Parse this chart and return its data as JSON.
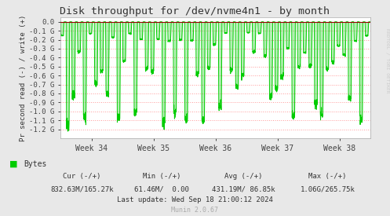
{
  "title": "Disk throughput for /dev/nvme4n1 - by month",
  "ylabel": "Pr second read (-) / write (+)",
  "background_color": "#e8e8e8",
  "plot_bg_color": "#ffffff",
  "grid_color": "#ff9999",
  "line_color": "#00cc00",
  "ylim_min": -1300000000.0,
  "ylim_max": 50000000.0,
  "yticks": [
    0.0,
    -100000000.0,
    -200000000.0,
    -300000000.0,
    -400000000.0,
    -500000000.0,
    -600000000.0,
    -700000000.0,
    -800000000.0,
    -900000000.0,
    -1000000000.0,
    -1100000000.0,
    -1200000000.0
  ],
  "ytick_labels": [
    "0.0",
    "-0.1 G",
    "-0.2 G",
    "-0.3 G",
    "-0.4 G",
    "-0.5 G",
    "-0.6 G",
    "-0.7 G",
    "-0.8 G",
    "-0.9 G",
    "-1.0 G",
    "-1.1 G",
    "-1.2 G"
  ],
  "week_labels": [
    "Week 34",
    "Week 35",
    "Week 36",
    "Week 37",
    "Week 38"
  ],
  "legend_label": "Bytes",
  "legend_color": "#00cc00",
  "cur_label": "Cur (-/+)",
  "cur_val": "832.63M/165.27k",
  "min_label": "Min (-/+)",
  "min_val": "61.46M/  0.00",
  "avg_label": "Avg (-/+)",
  "avg_val": "431.19M/ 86.85k",
  "max_label": "Max (-/+)",
  "max_val": "1.06G/265.75k",
  "last_update": "Last update: Wed Sep 18 21:00:12 2024",
  "munin_version": "Munin 2.0.67",
  "rrdtool_label": "RRDTOOL / TOBI OETIKER",
  "num_spikes": 55,
  "seed": 7
}
